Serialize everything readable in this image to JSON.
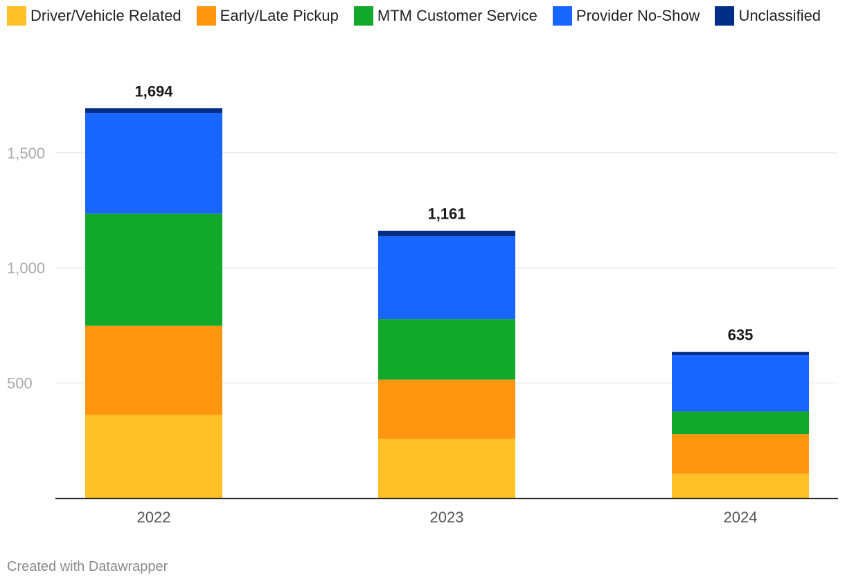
{
  "chart_data": {
    "type": "bar",
    "stacked": true,
    "title": "",
    "xlabel": "",
    "ylabel": "",
    "categories": [
      "2022",
      "2023",
      "2024"
    ],
    "series": [
      {
        "name": "Driver/Vehicle Related",
        "color": "#fdc125",
        "values": [
          362,
          258,
          106
        ]
      },
      {
        "name": "Early/Late Pickup",
        "color": "#fe960f",
        "values": [
          387,
          257,
          173
        ]
      },
      {
        "name": "MTM Customer Service",
        "color": "#12a82c",
        "values": [
          487,
          263,
          98
        ]
      },
      {
        "name": "Provider No-Show",
        "color": "#1865ff",
        "values": [
          437,
          360,
          245
        ]
      },
      {
        "name": "Unclassified",
        "color": "#022d87",
        "values": [
          21,
          23,
          13
        ]
      }
    ],
    "totals": [
      1694,
      1161,
      635
    ],
    "total_labels": [
      "1,694",
      "1,161",
      "635"
    ],
    "y_ticks": [
      500,
      1000,
      1500
    ],
    "y_tick_labels": [
      "500",
      "1,000",
      "1,500"
    ],
    "ylim": [
      0,
      1800
    ],
    "grid": true,
    "legend_position": "top-left"
  },
  "footer": {
    "credit": "Created with Datawrapper"
  }
}
